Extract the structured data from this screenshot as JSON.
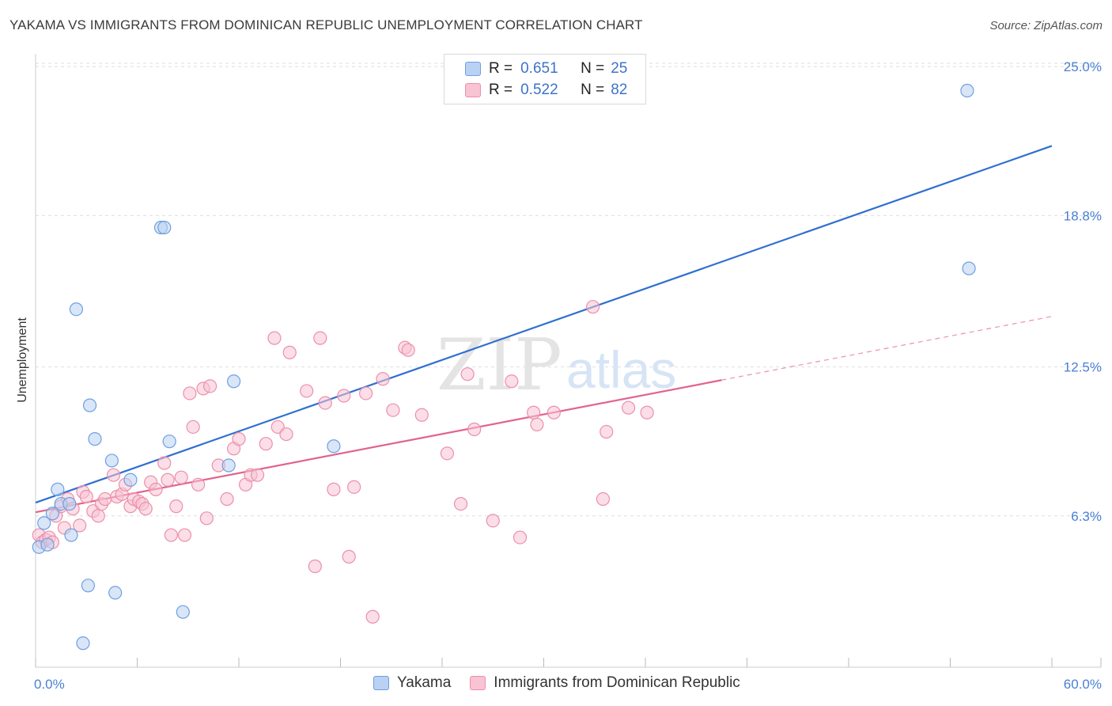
{
  "header": {
    "title": "YAKAMA VS IMMIGRANTS FROM DOMINICAN REPUBLIC UNEMPLOYMENT CORRELATION CHART",
    "source": "Source: ZipAtlas.com"
  },
  "watermark": {
    "zip": "ZIP",
    "atlas": "atlas"
  },
  "legend": {
    "r_label": "R =",
    "n_label": "N =",
    "entries": [
      {
        "r": "0.651",
        "n": "25"
      },
      {
        "r": "0.522",
        "n": "82"
      }
    ]
  },
  "colors": {
    "series1_fill": "#b9d1f3",
    "series1_stroke": "#6f9fe0",
    "series1_line": "#2f6fd1",
    "series2_fill": "#f8c3d3",
    "series2_stroke": "#ec8faa",
    "series2_line": "#e2638d",
    "tick_text": "#4a7fd4",
    "grid": "#dedede"
  },
  "chart_data": {
    "type": "scatter",
    "title": "YAKAMA VS IMMIGRANTS FROM DOMINICAN REPUBLIC UNEMPLOYMENT CORRELATION CHART",
    "xlabel": "",
    "ylabel": "Unemployment",
    "xlim": [
      0,
      60
    ],
    "ylim": [
      0,
      25.4
    ],
    "x_tick_labels": [
      "0.0%",
      "60.0%"
    ],
    "y_ticks": [
      6.3,
      12.5,
      18.8,
      25.0
    ],
    "y_tick_labels": [
      "6.3%",
      "12.5%",
      "18.8%",
      "25.0%"
    ],
    "grid": "horizontal dashed",
    "legend_position": "top-center",
    "series": [
      {
        "name": "Yakama",
        "r": 0.651,
        "n": 25,
        "points": [
          [
            0.2,
            5.0
          ],
          [
            0.5,
            6.0
          ],
          [
            0.7,
            5.1
          ],
          [
            1.0,
            6.4
          ],
          [
            1.3,
            7.4
          ],
          [
            1.5,
            6.8
          ],
          [
            2.0,
            6.8
          ],
          [
            2.1,
            5.5
          ],
          [
            2.4,
            14.9
          ],
          [
            2.8,
            1.0
          ],
          [
            3.1,
            3.4
          ],
          [
            3.2,
            10.9
          ],
          [
            3.5,
            9.5
          ],
          [
            4.5,
            8.6
          ],
          [
            4.7,
            3.1
          ],
          [
            5.6,
            7.8
          ],
          [
            7.4,
            18.3
          ],
          [
            7.6,
            18.3
          ],
          [
            7.9,
            9.4
          ],
          [
            8.7,
            2.3
          ],
          [
            11.4,
            8.4
          ],
          [
            11.7,
            11.9
          ],
          [
            17.6,
            9.2
          ],
          [
            55.0,
            24.0
          ],
          [
            55.1,
            16.6
          ]
        ],
        "trend": {
          "x": [
            0,
            60
          ],
          "y": [
            6.85,
            21.7
          ]
        }
      },
      {
        "name": "Immigrants from Dominican Republic",
        "r": 0.522,
        "n": 82,
        "points": [
          [
            0.2,
            5.5
          ],
          [
            0.4,
            5.2
          ],
          [
            0.6,
            5.3
          ],
          [
            0.8,
            5.4
          ],
          [
            1.0,
            5.2
          ],
          [
            1.2,
            6.3
          ],
          [
            1.5,
            6.7
          ],
          [
            1.7,
            5.8
          ],
          [
            1.9,
            7.0
          ],
          [
            2.2,
            6.6
          ],
          [
            2.6,
            5.9
          ],
          [
            2.8,
            7.3
          ],
          [
            3.0,
            7.1
          ],
          [
            3.4,
            6.5
          ],
          [
            3.7,
            6.3
          ],
          [
            3.9,
            6.8
          ],
          [
            4.1,
            7.0
          ],
          [
            4.6,
            8.0
          ],
          [
            4.8,
            7.1
          ],
          [
            5.1,
            7.2
          ],
          [
            5.3,
            7.6
          ],
          [
            5.6,
            6.7
          ],
          [
            5.8,
            7.0
          ],
          [
            6.1,
            6.9
          ],
          [
            6.3,
            6.8
          ],
          [
            6.5,
            6.6
          ],
          [
            6.8,
            7.7
          ],
          [
            7.1,
            7.4
          ],
          [
            7.6,
            8.5
          ],
          [
            7.8,
            7.8
          ],
          [
            8.0,
            5.5
          ],
          [
            8.3,
            6.7
          ],
          [
            8.6,
            7.9
          ],
          [
            8.8,
            5.5
          ],
          [
            9.1,
            11.4
          ],
          [
            9.3,
            10.0
          ],
          [
            9.6,
            7.6
          ],
          [
            9.9,
            11.6
          ],
          [
            10.1,
            6.2
          ],
          [
            10.3,
            11.7
          ],
          [
            10.8,
            8.4
          ],
          [
            11.3,
            7.0
          ],
          [
            11.7,
            9.1
          ],
          [
            12.0,
            9.5
          ],
          [
            12.4,
            7.6
          ],
          [
            12.7,
            8.0
          ],
          [
            13.1,
            8.0
          ],
          [
            13.6,
            9.3
          ],
          [
            14.1,
            13.7
          ],
          [
            14.3,
            10.0
          ],
          [
            14.8,
            9.7
          ],
          [
            15.0,
            13.1
          ],
          [
            16.0,
            11.5
          ],
          [
            16.5,
            4.2
          ],
          [
            16.8,
            13.7
          ],
          [
            17.1,
            11.0
          ],
          [
            17.6,
            7.4
          ],
          [
            18.5,
            4.6
          ],
          [
            18.8,
            7.5
          ],
          [
            19.5,
            11.4
          ],
          [
            19.9,
            2.1
          ],
          [
            20.5,
            12.0
          ],
          [
            21.1,
            10.7
          ],
          [
            21.8,
            13.3
          ],
          [
            22.8,
            10.5
          ],
          [
            24.3,
            8.9
          ],
          [
            25.1,
            6.8
          ],
          [
            25.5,
            12.2
          ],
          [
            25.9,
            9.9
          ],
          [
            27.0,
            6.1
          ],
          [
            28.1,
            11.9
          ],
          [
            28.6,
            5.4
          ],
          [
            29.4,
            10.6
          ],
          [
            29.6,
            10.1
          ],
          [
            30.6,
            10.6
          ],
          [
            32.9,
            15.0
          ],
          [
            33.5,
            7.0
          ],
          [
            33.7,
            9.8
          ],
          [
            35.0,
            10.8
          ],
          [
            36.1,
            10.6
          ],
          [
            22.0,
            13.2
          ],
          [
            18.2,
            11.3
          ]
        ],
        "trend": {
          "x": [
            0,
            40.5
          ],
          "y": [
            6.45,
            11.95
          ]
        },
        "trend_extension": {
          "x": [
            40.5,
            60
          ],
          "y": [
            11.95,
            14.6
          ]
        }
      }
    ]
  },
  "bottom_legend": {
    "items": [
      "Yakama",
      "Immigrants from Dominican Republic"
    ]
  }
}
